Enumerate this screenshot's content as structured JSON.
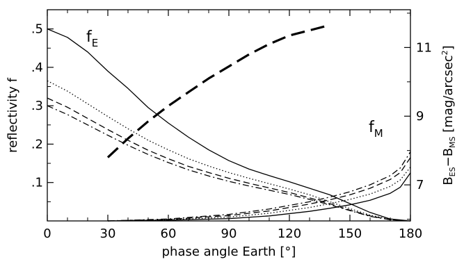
{
  "chart_data": {
    "type": "line",
    "xlabel": "phase angle Earth [°]",
    "ylabel_left": "reflectivity f",
    "ylabel_right": {
      "base1": "B",
      "sub1": "ES",
      "mid": "−B",
      "sub2": "MS",
      "unit": " [mag/arcsec",
      "sup": "2",
      "close": "]"
    },
    "xlim": [
      0,
      180
    ],
    "ylim_left": [
      0,
      0.55
    ],
    "ylim_right": [
      5.95,
      12.1
    ],
    "x_ticks": [
      0,
      30,
      60,
      90,
      120,
      150,
      180
    ],
    "x_tick_labels": [
      "0",
      "30",
      "60",
      "90",
      "120",
      "150",
      "180"
    ],
    "y_ticks_left": [
      0.1,
      0.2,
      0.3,
      0.4,
      0.5
    ],
    "y_tick_labels_left": [
      ".1",
      ".2",
      ".3",
      ".4",
      ".5"
    ],
    "y_ticks_right": [
      7,
      9,
      11
    ],
    "y_tick_labels_right": [
      "7",
      "9",
      "11"
    ],
    "annotations": {
      "fE": {
        "base": "f",
        "sub": "E"
      },
      "fM": {
        "base": "f",
        "sub": "M"
      }
    },
    "series": [
      {
        "group": "fE",
        "style": "solid",
        "axis": "left",
        "x": [
          0,
          10,
          20,
          30,
          40,
          50,
          60,
          70,
          80,
          90,
          100,
          110,
          120,
          130,
          140,
          150,
          160,
          170,
          180
        ],
        "y": [
          0.5,
          0.478,
          0.44,
          0.39,
          0.345,
          0.295,
          0.255,
          0.218,
          0.185,
          0.157,
          0.135,
          0.118,
          0.102,
          0.085,
          0.068,
          0.045,
          0.022,
          0.005,
          0.0
        ]
      },
      {
        "group": "fE",
        "style": "dotted",
        "axis": "left",
        "x": [
          0,
          10,
          20,
          30,
          40,
          50,
          60,
          70,
          80,
          90,
          100,
          110,
          120,
          130,
          140,
          150,
          160,
          170,
          180
        ],
        "y": [
          0.365,
          0.338,
          0.305,
          0.272,
          0.24,
          0.21,
          0.185,
          0.162,
          0.143,
          0.126,
          0.111,
          0.097,
          0.083,
          0.068,
          0.05,
          0.032,
          0.015,
          0.004,
          0.0
        ]
      },
      {
        "group": "fE",
        "style": "dashed",
        "axis": "left",
        "x": [
          0,
          10,
          20,
          30,
          40,
          50,
          60,
          70,
          80,
          90,
          100,
          110,
          120,
          130,
          140,
          150,
          160,
          170,
          180
        ],
        "y": [
          0.32,
          0.296,
          0.267,
          0.238,
          0.21,
          0.184,
          0.162,
          0.142,
          0.126,
          0.111,
          0.098,
          0.086,
          0.074,
          0.06,
          0.045,
          0.028,
          0.013,
          0.003,
          0.0
        ]
      },
      {
        "group": "fE",
        "style": "dashdot",
        "axis": "left",
        "x": [
          0,
          10,
          20,
          30,
          40,
          50,
          60,
          70,
          80,
          90,
          100,
          110,
          120,
          130,
          140,
          150,
          160,
          170,
          180
        ],
        "y": [
          0.3,
          0.277,
          0.25,
          0.223,
          0.197,
          0.173,
          0.152,
          0.133,
          0.117,
          0.103,
          0.091,
          0.08,
          0.069,
          0.056,
          0.042,
          0.027,
          0.012,
          0.003,
          0.0
        ]
      },
      {
        "group": "fM",
        "style": "solid",
        "axis": "left",
        "x": [
          30,
          60,
          90,
          110,
          130,
          140,
          150,
          160,
          170,
          175,
          180
        ],
        "y": [
          0.0,
          0.002,
          0.006,
          0.013,
          0.025,
          0.033,
          0.042,
          0.054,
          0.072,
          0.088,
          0.125
        ]
      },
      {
        "group": "fM",
        "style": "dotted",
        "axis": "left",
        "x": [
          30,
          60,
          90,
          110,
          130,
          140,
          150,
          160,
          170,
          175,
          180
        ],
        "y": [
          0.0,
          0.003,
          0.01,
          0.02,
          0.035,
          0.045,
          0.056,
          0.07,
          0.09,
          0.107,
          0.14
        ]
      },
      {
        "group": "fM",
        "style": "dashed",
        "axis": "left",
        "x": [
          30,
          60,
          90,
          110,
          130,
          140,
          150,
          160,
          170,
          175,
          180
        ],
        "y": [
          0.0,
          0.004,
          0.014,
          0.026,
          0.044,
          0.055,
          0.068,
          0.085,
          0.108,
          0.126,
          0.165
        ]
      },
      {
        "group": "fM",
        "style": "dashdot",
        "axis": "left",
        "x": [
          30,
          60,
          90,
          110,
          130,
          140,
          150,
          160,
          170,
          175,
          180
        ],
        "y": [
          0.0,
          0.005,
          0.017,
          0.031,
          0.05,
          0.062,
          0.076,
          0.094,
          0.118,
          0.138,
          0.18
        ]
      },
      {
        "group": "B",
        "style": "bold-dashed",
        "axis": "right",
        "x": [
          30,
          40,
          50,
          60,
          70,
          80,
          90,
          100,
          110,
          120,
          130,
          140
        ],
        "y": [
          7.8,
          8.35,
          8.85,
          9.3,
          9.7,
          10.1,
          10.45,
          10.8,
          11.1,
          11.35,
          11.5,
          11.65
        ]
      }
    ]
  }
}
